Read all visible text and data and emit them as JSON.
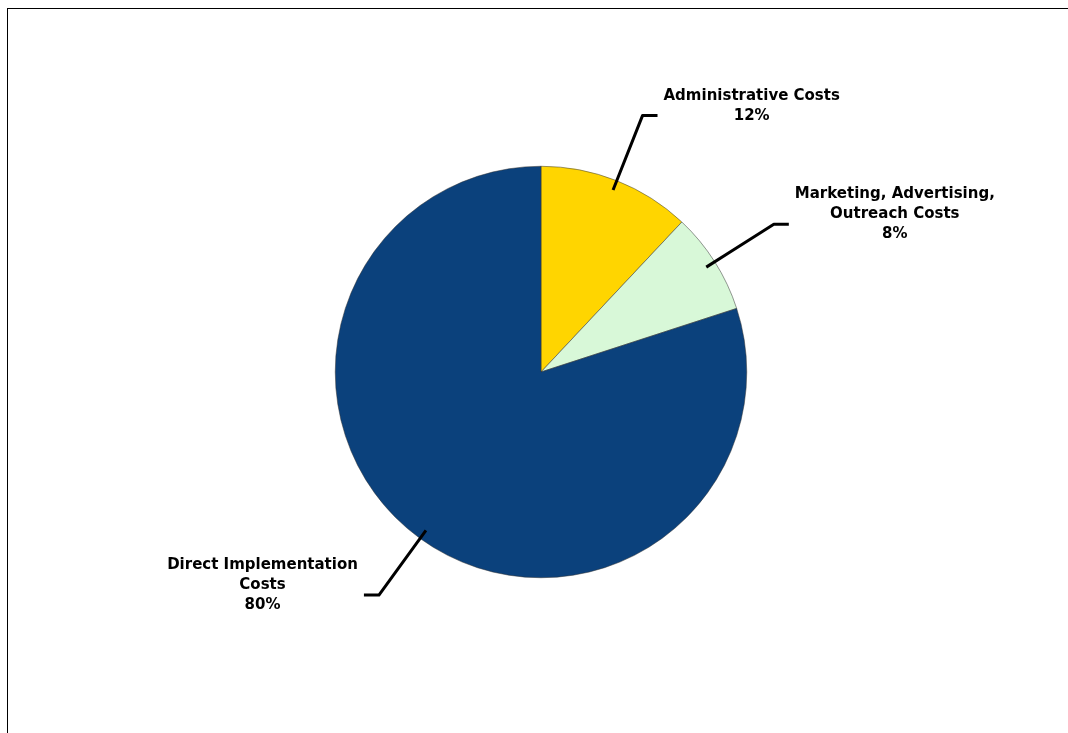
{
  "chart_data": {
    "type": "pie",
    "categories": [
      "Administrative Costs",
      "Marketing, Advertising, Outreach Costs",
      "Direct Implementation Costs"
    ],
    "values": [
      12,
      8,
      80
    ],
    "colors": [
      "#ffd500",
      "#d8f8d8",
      "#0b417c"
    ],
    "value_labels": [
      "12%",
      "8%",
      "80%"
    ],
    "legend": false
  }
}
